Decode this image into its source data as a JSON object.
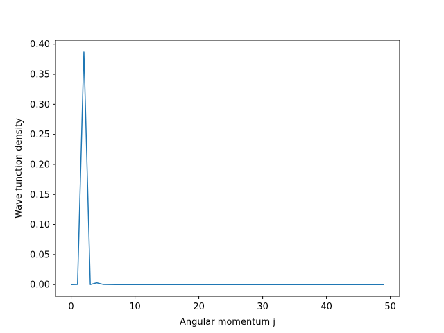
{
  "chart_data": {
    "type": "line",
    "title": "",
    "xlabel": "Angular momentum j",
    "ylabel": "Wave function density",
    "xlim": [
      -2.45,
      51.45
    ],
    "ylim": [
      -0.0194,
      0.4066
    ],
    "grid": false,
    "legend": "none",
    "x_ticks": [
      0,
      10,
      20,
      30,
      40,
      50
    ],
    "x_tick_labels": [
      "0",
      "10",
      "20",
      "30",
      "40",
      "50"
    ],
    "y_ticks": [
      0.0,
      0.05,
      0.1,
      0.15,
      0.2,
      0.25,
      0.3,
      0.35,
      0.4
    ],
    "y_tick_labels": [
      "0.00",
      "0.05",
      "0.10",
      "0.15",
      "0.20",
      "0.25",
      "0.30",
      "0.35",
      "0.40"
    ],
    "series": [
      {
        "color": "#1f77b4",
        "x": [
          0,
          1,
          2,
          3,
          4,
          5,
          6,
          7,
          8,
          9,
          10,
          11,
          12,
          13,
          14,
          15,
          16,
          17,
          18,
          19,
          20,
          21,
          22,
          23,
          24,
          25,
          26,
          27,
          28,
          29,
          30,
          31,
          32,
          33,
          34,
          35,
          36,
          37,
          38,
          39,
          40,
          41,
          42,
          43,
          44,
          45,
          46,
          47,
          48,
          49
        ],
        "values": [
          0.0,
          0.0003,
          0.387,
          0.0,
          0.003,
          0.0003,
          0.0001,
          0,
          0,
          0,
          0,
          0,
          0,
          0,
          0,
          0,
          0,
          0,
          0,
          0,
          0,
          0,
          0,
          0,
          0,
          0,
          0,
          0,
          0,
          0,
          0,
          0,
          0,
          0,
          0,
          0,
          0,
          0,
          0,
          0,
          0,
          0,
          0,
          0,
          0,
          0,
          0,
          0,
          0,
          0
        ]
      }
    ]
  }
}
